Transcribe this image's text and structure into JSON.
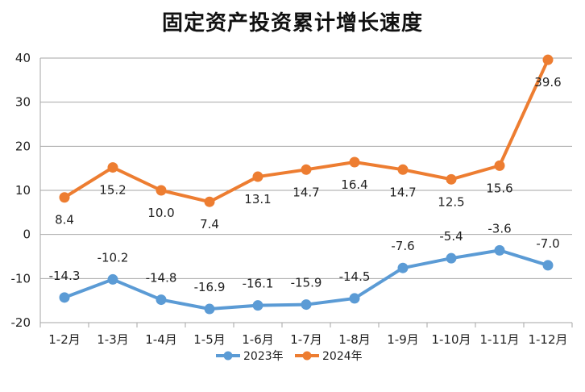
{
  "chart_data": {
    "type": "line",
    "title": "固定资产投资累计增长速度",
    "categories": [
      "1-2月",
      "1-3月",
      "1-4月",
      "1-5月",
      "1-6月",
      "1-7月",
      "1-8月",
      "1-9月",
      "1-10月",
      "1-11月",
      "1-12月"
    ],
    "ylim": [
      -20,
      40
    ],
    "yticks": [
      "-20",
      "-10",
      "0",
      "10",
      "20",
      "30",
      "40"
    ],
    "grid": true,
    "legend_position": "bottom",
    "series": [
      {
        "name": "2023年",
        "color": "#5b9bd5",
        "values": [
          -14.3,
          -10.2,
          -14.8,
          -16.9,
          -16.1,
          -15.9,
          -14.5,
          -7.6,
          -5.4,
          -3.6,
          -7.0
        ],
        "labels": [
          "-14.3",
          "-10.2",
          "-14.8",
          "-16.9",
          "-16.1",
          "-15.9",
          "-14.5",
          "-7.6",
          "-5.4",
          "-3.6",
          "-7.0"
        ]
      },
      {
        "name": "2024年",
        "color": "#ed7d31",
        "values": [
          8.4,
          15.2,
          10.0,
          7.4,
          13.1,
          14.7,
          16.4,
          14.7,
          12.5,
          15.6,
          39.6
        ],
        "labels": [
          "8.4",
          "15.2",
          "10.0",
          "7.4",
          "13.1",
          "14.7",
          "16.4",
          "14.7",
          "12.5",
          "15.6",
          "39.6"
        ]
      }
    ]
  }
}
